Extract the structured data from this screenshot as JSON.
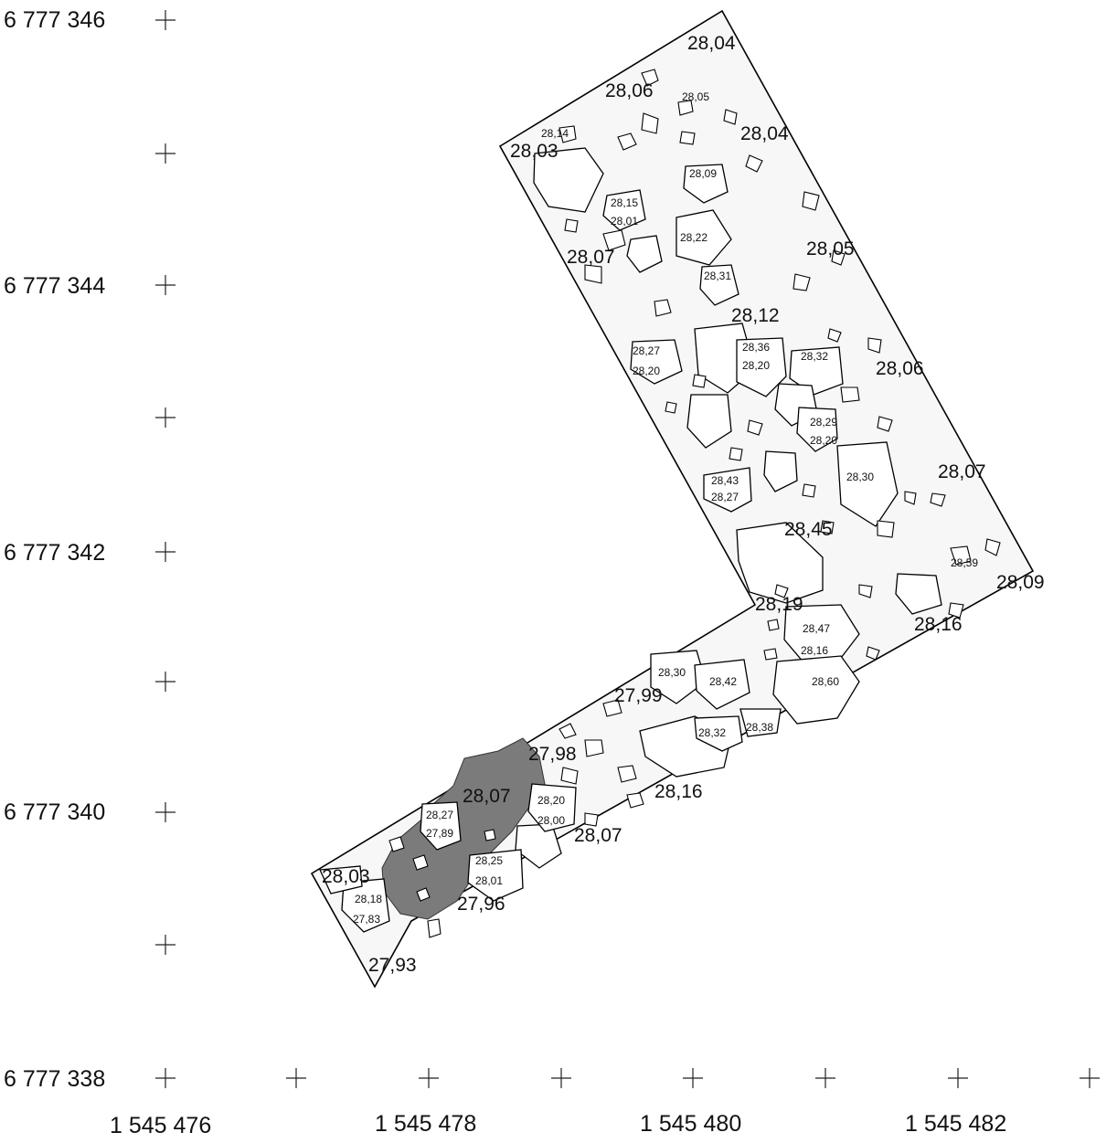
{
  "northing_labels": [
    "6 777 346",
    "6 777 344",
    "6 777 342",
    "6 777 340",
    "6 777 338"
  ],
  "easting_labels": [
    "1 545 476",
    "1 545 478",
    "1 545 480",
    "1 545 482"
  ],
  "elevations_large": [
    "28,04",
    "28,06",
    "28,03",
    "28,04",
    "28,07",
    "28,05",
    "28,12",
    "28,06",
    "28,07",
    "28,45",
    "28,09",
    "28,19",
    "28,16",
    "27,99",
    "27,98",
    "28,07",
    "28,16",
    "28,07",
    "28,03",
    "27,96",
    "27,93"
  ],
  "elevations_small": [
    "28,05",
    "28,14",
    "28,09",
    "28,15",
    "28,01",
    "28,22",
    "28,31",
    "28,27",
    "28,20",
    "28,36",
    "28,20",
    "28,32",
    "28,29",
    "28,20",
    "28,30",
    "28,43",
    "28,27",
    "28,59",
    "28,47",
    "28,16",
    "28,60",
    "28,30",
    "28,42",
    "28,32",
    "28,38",
    "28,20",
    "28,00",
    "28,27",
    "27,89",
    "28,25",
    "28,01",
    "28,18",
    "27,83"
  ],
  "colors": {
    "background": "#ffffff",
    "outline_fill": "#f7f7f7",
    "stone_fill": "#ffffff",
    "dark_patch": "#7b7b7b",
    "line": "#000000"
  }
}
